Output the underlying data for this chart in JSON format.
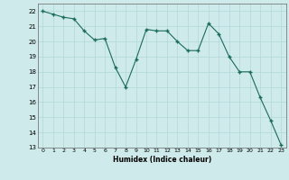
{
  "x": [
    0,
    1,
    2,
    3,
    4,
    5,
    6,
    7,
    8,
    9,
    10,
    11,
    12,
    13,
    14,
    15,
    16,
    17,
    18,
    19,
    20,
    21,
    22,
    23
  ],
  "y": [
    22,
    21.8,
    21.6,
    21.5,
    20.7,
    20.1,
    20.2,
    18.3,
    17.0,
    18.8,
    20.8,
    20.7,
    20.7,
    20.0,
    19.4,
    19.4,
    21.2,
    20.5,
    19.0,
    18.0,
    18.0,
    16.3,
    14.8,
    13.2
  ],
  "line_color": "#1a6b5a",
  "marker": "+",
  "marker_size": 3.5,
  "marker_linewidth": 1.0,
  "xlabel": "Humidex (Indice chaleur)",
  "ylim": [
    13,
    22.5
  ],
  "xlim": [
    -0.5,
    23.5
  ],
  "yticks": [
    13,
    14,
    15,
    16,
    17,
    18,
    19,
    20,
    21,
    22
  ],
  "xticks": [
    0,
    1,
    2,
    3,
    4,
    5,
    6,
    7,
    8,
    9,
    10,
    11,
    12,
    13,
    14,
    15,
    16,
    17,
    18,
    19,
    20,
    21,
    22,
    23
  ],
  "background_color": "#ceeaea",
  "grid_color": "#b0d8d8",
  "grid_linewidth": 0.5
}
